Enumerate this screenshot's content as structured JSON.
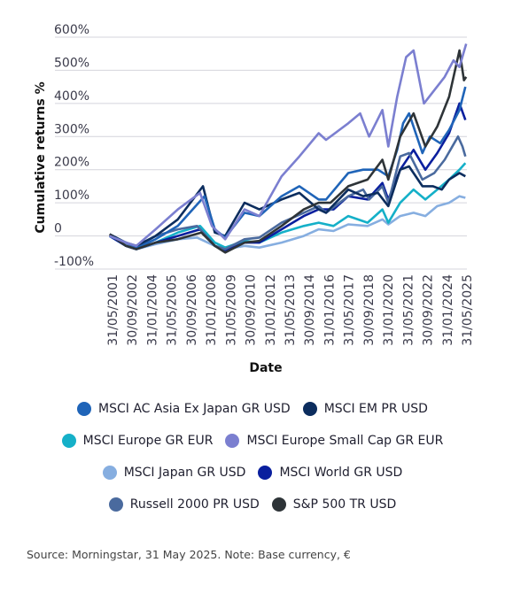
{
  "chart_data": {
    "type": "line",
    "title": "",
    "xlabel": "Date",
    "ylabel": "Cumulative returns %",
    "ylim": [
      -100,
      600
    ],
    "y_ticks": [
      "600%",
      "500%",
      "400%",
      "300%",
      "200%",
      "100%",
      "0",
      "-100%"
    ],
    "y_tick_values": [
      600,
      500,
      400,
      300,
      200,
      100,
      0,
      -100
    ],
    "x_ticks": [
      "31/05/2001",
      "30/09/2002",
      "31/01/2004",
      "31/05/2005",
      "30/09/2006",
      "31/01/2008",
      "31/05/2009",
      "30/09/2010",
      "31/01/2012",
      "31/05/2013",
      "30/09/2014",
      "31/01/2016",
      "31/05/2017",
      "30/09/2018",
      "31/01/2020",
      "31/05/2021",
      "30/09/2022",
      "31/01/2024",
      "31/05/2025"
    ],
    "xlim": [
      2001.0,
      2025.5
    ],
    "grid": true,
    "legend_position": "bottom",
    "series": [
      {
        "name": "MSCI AC Asia Ex Japan GR USD",
        "color": "#1f64b8",
        "points": [
          [
            2001.4,
            0
          ],
          [
            2002.5,
            -20
          ],
          [
            2003.3,
            -35
          ],
          [
            2004.5,
            -10
          ],
          [
            2006.0,
            30
          ],
          [
            2007.8,
            120
          ],
          [
            2008.5,
            20
          ],
          [
            2009.2,
            -5
          ],
          [
            2010.5,
            70
          ],
          [
            2011.5,
            60
          ],
          [
            2013.0,
            120
          ],
          [
            2014.2,
            150
          ],
          [
            2015.5,
            110
          ],
          [
            2016.0,
            110
          ],
          [
            2017.5,
            190
          ],
          [
            2018.5,
            200
          ],
          [
            2019.5,
            200
          ],
          [
            2020.2,
            180
          ],
          [
            2020.8,
            260
          ],
          [
            2021.2,
            340
          ],
          [
            2021.6,
            370
          ],
          [
            2022.5,
            250
          ],
          [
            2023.0,
            300
          ],
          [
            2023.7,
            280
          ],
          [
            2024.3,
            320
          ],
          [
            2025.0,
            380
          ],
          [
            2025.4,
            450
          ]
        ]
      },
      {
        "name": "MSCI EM PR USD",
        "color": "#0c2d5e",
        "points": [
          [
            2001.4,
            5
          ],
          [
            2002.5,
            -20
          ],
          [
            2003.2,
            -30
          ],
          [
            2004.5,
            0
          ],
          [
            2006.0,
            50
          ],
          [
            2007.7,
            150
          ],
          [
            2008.5,
            10
          ],
          [
            2009.2,
            0
          ],
          [
            2010.5,
            100
          ],
          [
            2011.5,
            80
          ],
          [
            2013.0,
            110
          ],
          [
            2014.2,
            130
          ],
          [
            2015.5,
            80
          ],
          [
            2016.0,
            70
          ],
          [
            2017.5,
            140
          ],
          [
            2018.5,
            120
          ],
          [
            2019.5,
            130
          ],
          [
            2020.2,
            90
          ],
          [
            2021.0,
            200
          ],
          [
            2021.6,
            210
          ],
          [
            2022.5,
            150
          ],
          [
            2023.2,
            150
          ],
          [
            2023.8,
            140
          ],
          [
            2024.3,
            170
          ],
          [
            2025.0,
            190
          ],
          [
            2025.4,
            180
          ]
        ]
      },
      {
        "name": "MSCI Europe GR EUR",
        "color": "#15b0c8",
        "points": [
          [
            2001.4,
            0
          ],
          [
            2002.5,
            -30
          ],
          [
            2003.2,
            -40
          ],
          [
            2004.5,
            -20
          ],
          [
            2006.0,
            10
          ],
          [
            2007.5,
            30
          ],
          [
            2008.5,
            -20
          ],
          [
            2009.2,
            -35
          ],
          [
            2010.5,
            -15
          ],
          [
            2011.5,
            -20
          ],
          [
            2013.0,
            10
          ],
          [
            2014.5,
            30
          ],
          [
            2015.5,
            40
          ],
          [
            2016.5,
            30
          ],
          [
            2017.5,
            60
          ],
          [
            2018.8,
            40
          ],
          [
            2019.8,
            80
          ],
          [
            2020.2,
            40
          ],
          [
            2021.0,
            100
          ],
          [
            2021.9,
            140
          ],
          [
            2022.7,
            110
          ],
          [
            2023.5,
            140
          ],
          [
            2024.3,
            170
          ],
          [
            2025.0,
            200
          ],
          [
            2025.4,
            220
          ]
        ]
      },
      {
        "name": "MSCI Europe Small Cap GR EUR",
        "color": "#7b7fd0",
        "points": [
          [
            2001.4,
            0
          ],
          [
            2002.5,
            -20
          ],
          [
            2003.2,
            -30
          ],
          [
            2004.5,
            20
          ],
          [
            2006.0,
            80
          ],
          [
            2007.5,
            130
          ],
          [
            2008.3,
            30
          ],
          [
            2009.2,
            -10
          ],
          [
            2010.5,
            80
          ],
          [
            2011.5,
            60
          ],
          [
            2013.0,
            180
          ],
          [
            2014.2,
            240
          ],
          [
            2015.5,
            310
          ],
          [
            2016.0,
            290
          ],
          [
            2017.5,
            340
          ],
          [
            2018.3,
            370
          ],
          [
            2018.9,
            300
          ],
          [
            2019.8,
            380
          ],
          [
            2020.2,
            270
          ],
          [
            2020.8,
            420
          ],
          [
            2021.4,
            540
          ],
          [
            2021.9,
            560
          ],
          [
            2022.6,
            400
          ],
          [
            2023.3,
            440
          ],
          [
            2024.0,
            480
          ],
          [
            2024.6,
            530
          ],
          [
            2025.0,
            510
          ],
          [
            2025.45,
            580
          ]
        ]
      },
      {
        "name": "MSCI Japan GR USD",
        "color": "#86aee0",
        "points": [
          [
            2001.4,
            0
          ],
          [
            2002.5,
            -25
          ],
          [
            2003.2,
            -40
          ],
          [
            2004.5,
            -25
          ],
          [
            2006.0,
            -10
          ],
          [
            2007.3,
            -5
          ],
          [
            2008.5,
            -30
          ],
          [
            2009.2,
            -40
          ],
          [
            2010.5,
            -30
          ],
          [
            2011.5,
            -35
          ],
          [
            2013.0,
            -20
          ],
          [
            2014.5,
            0
          ],
          [
            2015.5,
            20
          ],
          [
            2016.5,
            15
          ],
          [
            2017.5,
            35
          ],
          [
            2018.8,
            30
          ],
          [
            2019.8,
            50
          ],
          [
            2020.2,
            35
          ],
          [
            2021.0,
            60
          ],
          [
            2021.9,
            70
          ],
          [
            2022.7,
            60
          ],
          [
            2023.5,
            90
          ],
          [
            2024.3,
            100
          ],
          [
            2025.0,
            120
          ],
          [
            2025.4,
            115
          ]
        ]
      },
      {
        "name": "MSCI World GR USD",
        "color": "#0a1f9e",
        "points": [
          [
            2001.4,
            0
          ],
          [
            2002.5,
            -30
          ],
          [
            2003.2,
            -40
          ],
          [
            2004.5,
            -20
          ],
          [
            2006.0,
            0
          ],
          [
            2007.5,
            20
          ],
          [
            2008.5,
            -30
          ],
          [
            2009.2,
            -45
          ],
          [
            2010.5,
            -20
          ],
          [
            2011.5,
            -20
          ],
          [
            2013.0,
            20
          ],
          [
            2014.5,
            60
          ],
          [
            2015.5,
            80
          ],
          [
            2016.5,
            80
          ],
          [
            2017.5,
            120
          ],
          [
            2018.8,
            110
          ],
          [
            2019.8,
            160
          ],
          [
            2020.2,
            110
          ],
          [
            2021.0,
            200
          ],
          [
            2021.9,
            260
          ],
          [
            2022.7,
            200
          ],
          [
            2023.5,
            250
          ],
          [
            2024.3,
            310
          ],
          [
            2025.0,
            400
          ],
          [
            2025.4,
            350
          ]
        ]
      },
      {
        "name": "Russell 2000 PR USD",
        "color": "#4a6a9e",
        "points": [
          [
            2001.4,
            0
          ],
          [
            2002.5,
            -20
          ],
          [
            2003.2,
            -35
          ],
          [
            2004.5,
            0
          ],
          [
            2006.0,
            20
          ],
          [
            2007.3,
            30
          ],
          [
            2008.5,
            -30
          ],
          [
            2009.2,
            -40
          ],
          [
            2010.5,
            -10
          ],
          [
            2011.5,
            -5
          ],
          [
            2013.0,
            40
          ],
          [
            2014.5,
            70
          ],
          [
            2015.5,
            90
          ],
          [
            2016.0,
            70
          ],
          [
            2017.5,
            120
          ],
          [
            2018.5,
            140
          ],
          [
            2018.9,
            110
          ],
          [
            2019.8,
            150
          ],
          [
            2020.2,
            100
          ],
          [
            2021.0,
            240
          ],
          [
            2021.6,
            250
          ],
          [
            2022.5,
            170
          ],
          [
            2023.3,
            190
          ],
          [
            2024.0,
            230
          ],
          [
            2024.9,
            300
          ],
          [
            2025.2,
            270
          ],
          [
            2025.4,
            240
          ]
        ]
      },
      {
        "name": "S&P 500 TR USD",
        "color": "#2e3438",
        "points": [
          [
            2001.4,
            5
          ],
          [
            2002.5,
            -30
          ],
          [
            2003.2,
            -40
          ],
          [
            2004.5,
            -20
          ],
          [
            2006.0,
            -10
          ],
          [
            2007.6,
            10
          ],
          [
            2008.5,
            -30
          ],
          [
            2009.2,
            -50
          ],
          [
            2010.5,
            -20
          ],
          [
            2011.5,
            -15
          ],
          [
            2013.0,
            30
          ],
          [
            2014.5,
            80
          ],
          [
            2015.5,
            100
          ],
          [
            2016.3,
            100
          ],
          [
            2017.5,
            150
          ],
          [
            2018.8,
            170
          ],
          [
            2019.8,
            230
          ],
          [
            2020.2,
            170
          ],
          [
            2021.0,
            300
          ],
          [
            2021.9,
            370
          ],
          [
            2022.7,
            270
          ],
          [
            2023.5,
            330
          ],
          [
            2024.3,
            420
          ],
          [
            2025.0,
            560
          ],
          [
            2025.3,
            470
          ],
          [
            2025.45,
            480
          ]
        ]
      }
    ]
  },
  "legend_rows": [
    [
      0,
      1
    ],
    [
      2,
      3
    ],
    [
      4,
      5
    ],
    [
      6,
      7
    ]
  ],
  "source_note": "Source:  Morningstar, 31 May 2025. Note: Base currency, €"
}
